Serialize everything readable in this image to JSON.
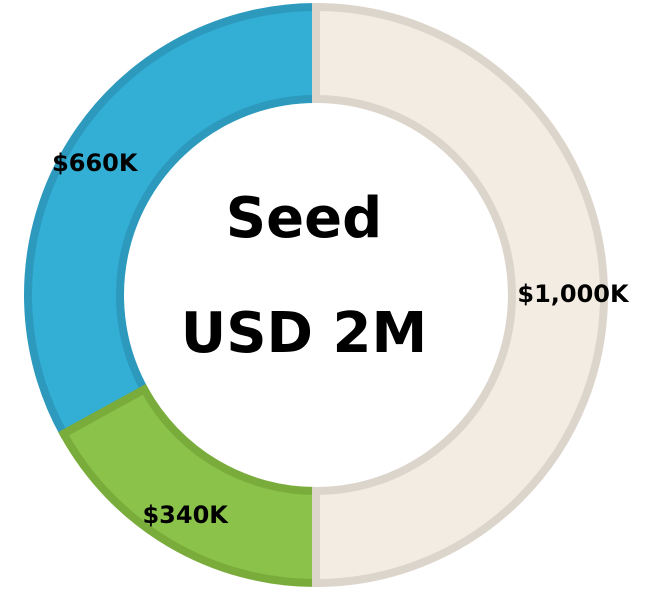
{
  "chart_data": {
    "type": "donut",
    "center_title": "Seed",
    "center_subtitle": "USD 2M",
    "categories": [
      null,
      null,
      null
    ],
    "values": [
      1000,
      340,
      660
    ],
    "value_labels": [
      "$1,000K",
      "$340K",
      "$660K"
    ],
    "colors": [
      "#f3ece2",
      "#8bc34a",
      "#33aed4"
    ],
    "stroke_colors": [
      "#dcd5cb",
      "#7aac3c",
      "#2c99bd"
    ]
  }
}
